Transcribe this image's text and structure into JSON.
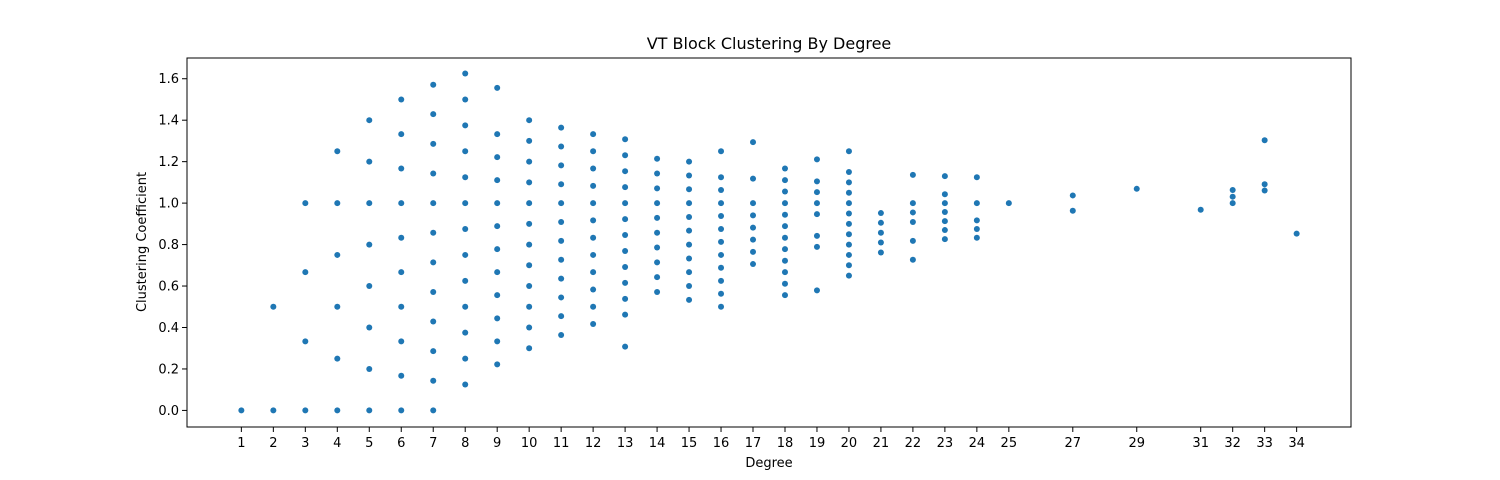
{
  "chart_data": {
    "type": "scatter",
    "title": "VT Block Clustering By Degree",
    "xlabel": "Degree",
    "ylabel": "Clustering Coefficient",
    "xlim": [
      -0.7,
      35.7
    ],
    "ylim": [
      -0.08,
      1.7
    ],
    "xticks": [
      1,
      2,
      3,
      4,
      5,
      6,
      7,
      8,
      9,
      10,
      11,
      12,
      13,
      14,
      15,
      16,
      17,
      18,
      19,
      20,
      21,
      22,
      23,
      24,
      25,
      27,
      29,
      31,
      32,
      33,
      34
    ],
    "yticks": [
      0.0,
      0.2,
      0.4,
      0.6,
      0.8,
      1.0,
      1.2,
      1.4,
      1.6
    ],
    "ytick_labels": [
      "0.0",
      "0.2",
      "0.4",
      "0.6",
      "0.8",
      "1.0",
      "1.2",
      "1.4",
      "1.6"
    ],
    "grid": false,
    "series": [
      {
        "color": "#1f77b4",
        "points": [
          [
            1,
            0.0
          ],
          [
            2,
            0.0
          ],
          [
            2,
            0.5
          ],
          [
            3,
            0.0
          ],
          [
            3,
            0.333
          ],
          [
            3,
            0.667
          ],
          [
            3,
            1.0
          ],
          [
            4,
            0.0
          ],
          [
            4,
            0.25
          ],
          [
            4,
            0.5
          ],
          [
            4,
            0.75
          ],
          [
            4,
            1.0
          ],
          [
            4,
            1.25
          ],
          [
            5,
            0.0
          ],
          [
            5,
            0.2
          ],
          [
            5,
            0.4
          ],
          [
            5,
            0.6
          ],
          [
            5,
            0.8
          ],
          [
            5,
            1.0
          ],
          [
            5,
            1.2
          ],
          [
            5,
            1.4
          ],
          [
            6,
            0.0
          ],
          [
            6,
            0.167
          ],
          [
            6,
            0.333
          ],
          [
            6,
            0.5
          ],
          [
            6,
            0.667
          ],
          [
            6,
            0.833
          ],
          [
            6,
            1.0
          ],
          [
            6,
            1.167
          ],
          [
            6,
            1.333
          ],
          [
            6,
            1.5
          ],
          [
            7,
            0.0
          ],
          [
            7,
            0.143
          ],
          [
            7,
            0.286
          ],
          [
            7,
            0.429
          ],
          [
            7,
            0.571
          ],
          [
            7,
            0.714
          ],
          [
            7,
            0.857
          ],
          [
            7,
            1.0
          ],
          [
            7,
            1.143
          ],
          [
            7,
            1.286
          ],
          [
            7,
            1.429
          ],
          [
            7,
            1.571
          ],
          [
            8,
            0.125
          ],
          [
            8,
            0.25
          ],
          [
            8,
            0.375
          ],
          [
            8,
            0.5
          ],
          [
            8,
            0.625
          ],
          [
            8,
            0.75
          ],
          [
            8,
            0.875
          ],
          [
            8,
            1.0
          ],
          [
            8,
            1.125
          ],
          [
            8,
            1.25
          ],
          [
            8,
            1.375
          ],
          [
            8,
            1.5
          ],
          [
            8,
            1.625
          ],
          [
            9,
            0.222
          ],
          [
            9,
            0.333
          ],
          [
            9,
            0.444
          ],
          [
            9,
            0.556
          ],
          [
            9,
            0.667
          ],
          [
            9,
            0.778
          ],
          [
            9,
            0.889
          ],
          [
            9,
            1.0
          ],
          [
            9,
            1.111
          ],
          [
            9,
            1.222
          ],
          [
            9,
            1.333
          ],
          [
            9,
            1.556
          ],
          [
            10,
            0.3
          ],
          [
            10,
            0.4
          ],
          [
            10,
            0.5
          ],
          [
            10,
            0.6
          ],
          [
            10,
            0.7
          ],
          [
            10,
            0.8
          ],
          [
            10,
            0.9
          ],
          [
            10,
            1.0
          ],
          [
            10,
            1.1
          ],
          [
            10,
            1.2
          ],
          [
            10,
            1.3
          ],
          [
            10,
            1.4
          ],
          [
            11,
            0.364
          ],
          [
            11,
            0.455
          ],
          [
            11,
            0.545
          ],
          [
            11,
            0.636
          ],
          [
            11,
            0.727
          ],
          [
            11,
            0.818
          ],
          [
            11,
            0.909
          ],
          [
            11,
            1.0
          ],
          [
            11,
            1.091
          ],
          [
            11,
            1.182
          ],
          [
            11,
            1.273
          ],
          [
            11,
            1.364
          ],
          [
            12,
            0.417
          ],
          [
            12,
            0.5
          ],
          [
            12,
            0.583
          ],
          [
            12,
            0.667
          ],
          [
            12,
            0.75
          ],
          [
            12,
            0.833
          ],
          [
            12,
            0.917
          ],
          [
            12,
            1.0
          ],
          [
            12,
            1.083
          ],
          [
            12,
            1.167
          ],
          [
            12,
            1.25
          ],
          [
            12,
            1.333
          ],
          [
            13,
            0.308
          ],
          [
            13,
            0.462
          ],
          [
            13,
            0.538
          ],
          [
            13,
            0.615
          ],
          [
            13,
            0.692
          ],
          [
            13,
            0.769
          ],
          [
            13,
            0.846
          ],
          [
            13,
            0.923
          ],
          [
            13,
            1.0
          ],
          [
            13,
            1.077
          ],
          [
            13,
            1.154
          ],
          [
            13,
            1.231
          ],
          [
            13,
            1.308
          ],
          [
            14,
            0.571
          ],
          [
            14,
            0.643
          ],
          [
            14,
            0.714
          ],
          [
            14,
            0.786
          ],
          [
            14,
            0.857
          ],
          [
            14,
            0.929
          ],
          [
            14,
            1.0
          ],
          [
            14,
            1.071
          ],
          [
            14,
            1.143
          ],
          [
            14,
            1.214
          ],
          [
            15,
            0.533
          ],
          [
            15,
            0.6
          ],
          [
            15,
            0.667
          ],
          [
            15,
            0.733
          ],
          [
            15,
            0.8
          ],
          [
            15,
            0.867
          ],
          [
            15,
            0.933
          ],
          [
            15,
            1.0
          ],
          [
            15,
            1.067
          ],
          [
            15,
            1.133
          ],
          [
            15,
            1.2
          ],
          [
            16,
            0.5
          ],
          [
            16,
            0.563
          ],
          [
            16,
            0.625
          ],
          [
            16,
            0.688
          ],
          [
            16,
            0.75
          ],
          [
            16,
            0.813
          ],
          [
            16,
            0.875
          ],
          [
            16,
            0.938
          ],
          [
            16,
            1.0
          ],
          [
            16,
            1.063
          ],
          [
            16,
            1.125
          ],
          [
            16,
            1.25
          ],
          [
            17,
            0.706
          ],
          [
            17,
            0.765
          ],
          [
            17,
            0.824
          ],
          [
            17,
            0.882
          ],
          [
            17,
            0.941
          ],
          [
            17,
            1.0
          ],
          [
            17,
            1.118
          ],
          [
            17,
            1.294
          ],
          [
            18,
            0.556
          ],
          [
            18,
            0.611
          ],
          [
            18,
            0.667
          ],
          [
            18,
            0.722
          ],
          [
            18,
            0.778
          ],
          [
            18,
            0.833
          ],
          [
            18,
            0.889
          ],
          [
            18,
            0.944
          ],
          [
            18,
            1.0
          ],
          [
            18,
            1.056
          ],
          [
            18,
            1.111
          ],
          [
            18,
            1.167
          ],
          [
            19,
            0.579
          ],
          [
            19,
            0.789
          ],
          [
            19,
            0.842
          ],
          [
            19,
            0.947
          ],
          [
            19,
            1.0
          ],
          [
            19,
            1.053
          ],
          [
            19,
            1.105
          ],
          [
            19,
            1.211
          ],
          [
            20,
            0.65
          ],
          [
            20,
            0.7
          ],
          [
            20,
            0.75
          ],
          [
            20,
            0.8
          ],
          [
            20,
            0.85
          ],
          [
            20,
            0.9
          ],
          [
            20,
            0.95
          ],
          [
            20,
            1.0
          ],
          [
            20,
            1.05
          ],
          [
            20,
            1.1
          ],
          [
            20,
            1.15
          ],
          [
            20,
            1.25
          ],
          [
            21,
            0.762
          ],
          [
            21,
            0.81
          ],
          [
            21,
            0.857
          ],
          [
            21,
            0.905
          ],
          [
            21,
            0.952
          ],
          [
            22,
            0.727
          ],
          [
            22,
            0.818
          ],
          [
            22,
            0.909
          ],
          [
            22,
            0.955
          ],
          [
            22,
            1.0
          ],
          [
            22,
            1.136
          ],
          [
            23,
            0.826
          ],
          [
            23,
            0.87
          ],
          [
            23,
            0.913
          ],
          [
            23,
            0.957
          ],
          [
            23,
            1.0
          ],
          [
            23,
            1.043
          ],
          [
            23,
            1.13
          ],
          [
            24,
            0.833
          ],
          [
            24,
            0.875
          ],
          [
            24,
            0.917
          ],
          [
            24,
            1.0
          ],
          [
            24,
            1.125
          ],
          [
            25,
            1.0
          ],
          [
            27,
            0.963
          ],
          [
            27,
            1.037
          ],
          [
            29,
            1.069
          ],
          [
            31,
            0.968
          ],
          [
            32,
            1.0
          ],
          [
            32,
            1.031
          ],
          [
            32,
            1.063
          ],
          [
            33,
            1.061
          ],
          [
            33,
            1.091
          ],
          [
            33,
            1.303
          ],
          [
            34,
            0.853
          ]
        ]
      }
    ]
  }
}
